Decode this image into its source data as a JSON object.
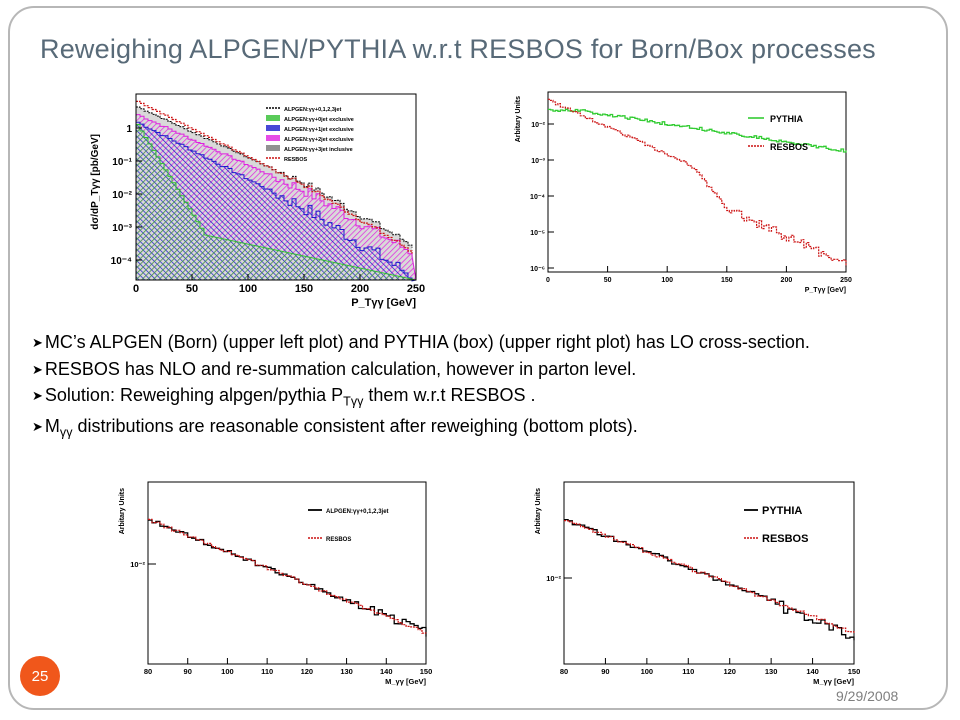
{
  "slide": {
    "title": "Reweighing ALPGEN/PYTHIA w.r.t RESBOS for Born/Box processes",
    "page_number": "25",
    "date": "9/29/2008"
  },
  "bullets": [
    {
      "pre": "MC’s ALPGEN (Born) (upper left plot)  and PYTHIA (box) (upper right plot) has LO cross-section.",
      "sub": "",
      "post": ""
    },
    {
      "pre": "RESBOS has NLO and re-summation  calculation, however in parton level.",
      "sub": "",
      "post": ""
    },
    {
      "pre": "Solution: Reweighing alpgen/pythia P",
      "sub": "Tγγ",
      "post": " them w.r.t RESBOS ."
    },
    {
      "pre": "M",
      "sub": "γγ",
      "post": " distributions are reasonable consistent after reweighing (bottom plots)."
    }
  ],
  "plots": {
    "top_left": {
      "ylabel": "dσ/dP_Tγγ [pb/GeV]",
      "xlabel": "P_Tγγ [GeV]",
      "xticks": [
        "0",
        "50",
        "100",
        "150",
        "200",
        "250"
      ],
      "yticks": [
        "1",
        "10⁻¹",
        "10⁻²",
        "10⁻³",
        "10⁻⁴"
      ],
      "legend": [
        "ALPGEN:γγ+0,1,2,3jet",
        "ALPGEN:γγ+0jet exclusive",
        "ALPGEN:γγ+1jet exclusive",
        "ALPGEN:γγ+2jet exclusive",
        "ALPGEN:γγ+3jet inclusive",
        "RESBOS"
      ],
      "colors": {
        "total": "#000000",
        "jet0": "#2fbe2f",
        "jet1": "#1a1acc",
        "jet2": "#e020e0",
        "jet3": "#777777",
        "resbos": "#cc1111"
      }
    },
    "top_right": {
      "ylabel": "Arbitary Units",
      "xlabel": "P_Tγγ [GeV]",
      "xticks": [
        "0",
        "50",
        "100",
        "150",
        "200",
        "250"
      ],
      "yticks": [
        "10⁻²",
        "10⁻³",
        "10⁻⁴",
        "10⁻⁵",
        "10⁻⁶"
      ],
      "legend": [
        "PYTHIA",
        "RESBOS"
      ],
      "colors": {
        "pythia": "#33cc33",
        "resbos": "#cc1111"
      }
    },
    "bottom_left": {
      "ylabel": "Arbitary Units",
      "xlabel": "M_γγ [GeV]",
      "xticks": [
        "80",
        "90",
        "100",
        "110",
        "120",
        "130",
        "140",
        "150"
      ],
      "yticks": [
        "10⁻²"
      ],
      "legend": [
        "ALPGEN:γγ+0,1,2,3jet",
        "RESBOS"
      ],
      "colors": {
        "mc": "#000000",
        "resbos": "#cc1111"
      }
    },
    "bottom_right": {
      "ylabel": "Arbitary Units",
      "xlabel": "M_γγ [GeV]",
      "xticks": [
        "80",
        "90",
        "100",
        "110",
        "120",
        "130",
        "140",
        "150"
      ],
      "yticks": [
        "10⁻²"
      ],
      "legend": [
        "PYTHIA",
        "RESBOS"
      ],
      "colors": {
        "mc": "#000000",
        "resbos": "#cc1111"
      }
    }
  }
}
